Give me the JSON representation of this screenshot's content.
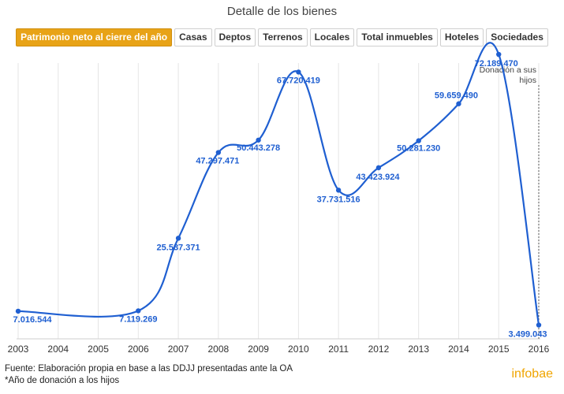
{
  "header": {
    "title": "Detalle de los bienes"
  },
  "tabs": [
    {
      "label": "Patrimonio neto al cierre del año",
      "active": true
    },
    {
      "label": "Casas",
      "active": false
    },
    {
      "label": "Deptos",
      "active": false
    },
    {
      "label": "Terrenos",
      "active": false
    },
    {
      "label": "Locales",
      "active": false
    },
    {
      "label": "Total inmuebles",
      "active": false
    },
    {
      "label": "Hoteles",
      "active": false
    },
    {
      "label": "Sociedades",
      "active": false
    }
  ],
  "chart_data": {
    "type": "line",
    "title": "Patrimonio neto al cierre del año",
    "xlabel": "",
    "ylabel": "",
    "x": [
      2003,
      2006,
      2007,
      2008,
      2009,
      2010,
      2011,
      2012,
      2013,
      2014,
      2015,
      2016
    ],
    "values": [
      7016544,
      7119269,
      25537371,
      47297471,
      50443278,
      67720419,
      37731516,
      43423924,
      50281230,
      59659490,
      72189470,
      3499043
    ],
    "value_labels": [
      "7.016.544",
      "7.119.269",
      "25.537.371",
      "47.297.471",
      "50.443.278",
      "67.720.419",
      "37.731.516",
      "43.423.924",
      "50.281.230",
      "59.659.490",
      "72.189.470",
      "3.499.043"
    ],
    "x_ticks": [
      "2003",
      "2004",
      "2005",
      "2006",
      "2007",
      "2008",
      "2009",
      "2010",
      "2011",
      "2012",
      "2013",
      "2014",
      "2015",
      "2016"
    ],
    "ylim": [
      0,
      80000000
    ],
    "annotation": {
      "text_lines": [
        "Donación a sus",
        "hijos"
      ],
      "x": 2016
    },
    "colors": {
      "line": "#1f5fd1",
      "labels": "#1f5fd1",
      "grid": "#e6e6e6",
      "annotation_line": "#555555"
    }
  },
  "footer": {
    "source": "Fuente: Elaboración propia en base a las DDJJ presentadas ante la OA",
    "note": "*Año de donación a los hijos",
    "brand": "infobae"
  }
}
